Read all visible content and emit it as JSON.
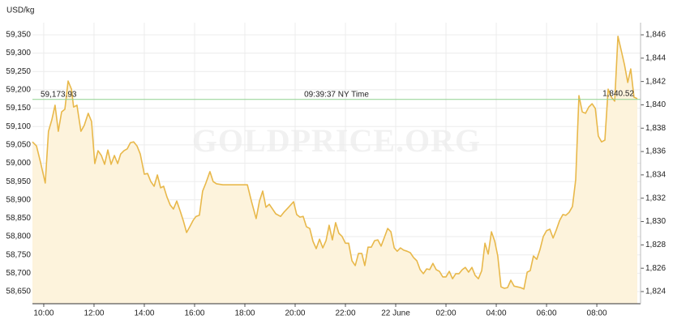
{
  "chart_data": {
    "type": "line",
    "y_label": "USD/kg",
    "watermark": "GOLDPRICE.ORG",
    "xlim": [
      9.55,
      33.74
    ],
    "xticks": [
      {
        "value": 10,
        "label": "10:00"
      },
      {
        "value": 12,
        "label": "12:00"
      },
      {
        "value": 14,
        "label": "14:00"
      },
      {
        "value": 16,
        "label": "16:00"
      },
      {
        "value": 18,
        "label": "18:00"
      },
      {
        "value": 20,
        "label": "20:00"
      },
      {
        "value": 22,
        "label": "22:00"
      },
      {
        "value": 24,
        "label": "22 June"
      },
      {
        "value": 26,
        "label": "02:00"
      },
      {
        "value": 28,
        "label": "04:00"
      },
      {
        "value": 30,
        "label": "06:00"
      },
      {
        "value": 32,
        "label": "08:00"
      }
    ],
    "ylim": [
      58617,
      59383
    ],
    "yticks": [
      {
        "value": 58650,
        "label": "58,650"
      },
      {
        "value": 58700,
        "label": "58,700"
      },
      {
        "value": 58750,
        "label": "58,750"
      },
      {
        "value": 58800,
        "label": "58,800"
      },
      {
        "value": 58850,
        "label": "58,850"
      },
      {
        "value": 58900,
        "label": "58,900"
      },
      {
        "value": 58950,
        "label": "58,950"
      },
      {
        "value": 59000,
        "label": "59,000"
      },
      {
        "value": 59050,
        "label": "59,050"
      },
      {
        "value": 59100,
        "label": "59,100"
      },
      {
        "value": 59150,
        "label": "59,150"
      },
      {
        "value": 59200,
        "label": "59,200"
      },
      {
        "value": 59250,
        "label": "59,250"
      },
      {
        "value": 59300,
        "label": "59,300"
      },
      {
        "value": 59350,
        "label": "59,350"
      }
    ],
    "y2lim": [
      1822.96,
      1847.04
    ],
    "y2ticks": [
      {
        "value": 1824,
        "label": "1,824"
      },
      {
        "value": 1826,
        "label": "1,826"
      },
      {
        "value": 1828,
        "label": "1,828"
      },
      {
        "value": 1830,
        "label": "1,830"
      },
      {
        "value": 1832,
        "label": "1,832"
      },
      {
        "value": 1834,
        "label": "1,834"
      },
      {
        "value": 1836,
        "label": "1,836"
      },
      {
        "value": 1838,
        "label": "1,838"
      },
      {
        "value": 1840,
        "label": "1,840"
      },
      {
        "value": 1842,
        "label": "1,842"
      },
      {
        "value": 1844,
        "label": "1,844"
      },
      {
        "value": 1846,
        "label": "1,846"
      }
    ],
    "grid": true,
    "reference": {
      "value": 59173.93,
      "label": "59,173.93",
      "time": "09:39:37 NY Time",
      "y2_value": 1840.52,
      "y2_label": "1,840.52",
      "color": "#8fd18f",
      "text_color": "#55a83a"
    },
    "x": [
      9.55,
      9.71,
      9.87,
      10.06,
      10.19,
      10.32,
      10.45,
      10.58,
      10.71,
      10.84,
      10.97,
      11.1,
      11.19,
      11.32,
      11.48,
      11.61,
      11.77,
      11.9,
      12.03,
      12.16,
      12.29,
      12.42,
      12.55,
      12.68,
      12.81,
      12.94,
      13.06,
      13.19,
      13.32,
      13.45,
      13.58,
      13.71,
      13.84,
      14.0,
      14.13,
      14.26,
      14.39,
      14.52,
      14.65,
      14.77,
      14.9,
      15.03,
      15.16,
      15.29,
      15.42,
      15.55,
      15.68,
      15.81,
      15.94,
      16.06,
      16.19,
      16.32,
      16.45,
      16.61,
      16.74,
      16.87,
      17.13,
      17.61,
      18.1,
      18.26,
      18.45,
      18.58,
      18.71,
      18.84,
      18.97,
      19.1,
      19.23,
      19.42,
      19.55,
      19.74,
      19.94,
      20.06,
      20.19,
      20.32,
      20.45,
      20.58,
      20.71,
      20.84,
      20.97,
      21.1,
      21.23,
      21.35,
      21.48,
      21.61,
      21.74,
      21.87,
      22.0,
      22.13,
      22.26,
      22.39,
      22.52,
      22.65,
      22.77,
      22.9,
      23.03,
      23.16,
      23.29,
      23.42,
      23.55,
      23.68,
      23.81,
      23.94,
      24.06,
      24.19,
      24.32,
      24.45,
      24.58,
      24.71,
      24.84,
      24.97,
      25.1,
      25.23,
      25.35,
      25.48,
      25.61,
      25.74,
      25.87,
      26.0,
      26.13,
      26.26,
      26.39,
      26.52,
      26.65,
      26.77,
      26.9,
      27.03,
      27.16,
      27.29,
      27.42,
      27.55,
      27.68,
      27.81,
      27.94,
      28.06,
      28.19,
      28.32,
      28.45,
      28.58,
      28.71,
      28.84,
      28.97,
      29.1,
      29.23,
      29.35,
      29.48,
      29.61,
      29.74,
      29.87,
      30.0,
      30.13,
      30.26,
      30.39,
      30.52,
      30.65,
      30.77,
      30.9,
      31.03,
      31.16,
      31.29,
      31.42,
      31.55,
      31.68,
      31.81,
      31.94,
      32.06,
      32.19,
      32.32,
      32.45,
      32.58,
      32.71,
      32.84,
      32.97,
      33.1,
      33.23,
      33.35,
      33.48,
      33.61
    ],
    "series": [
      {
        "color": "#e8b84a",
        "fill": "#fdf3dc",
        "values": [
          59058,
          59047,
          59003,
          58946,
          59087,
          59118,
          59158,
          59087,
          59140,
          59147,
          59224,
          59202,
          59153,
          59158,
          59087,
          59103,
          59136,
          59114,
          58999,
          59034,
          59021,
          58997,
          59036,
          58997,
          59021,
          58999,
          59025,
          59034,
          59039,
          59056,
          59058,
          59047,
          59025,
          58970,
          58972,
          58950,
          58937,
          58968,
          58933,
          58937,
          58908,
          58886,
          58875,
          58897,
          58871,
          58844,
          58811,
          58827,
          58844,
          58855,
          58858,
          58924,
          58946,
          58977,
          58950,
          58944,
          58941,
          58941,
          58941,
          58897,
          58849,
          58897,
          58924,
          58880,
          58888,
          58875,
          58862,
          58855,
          58866,
          58880,
          58895,
          58860,
          58853,
          58855,
          58827,
          58822,
          58787,
          58767,
          58793,
          58769,
          58789,
          58831,
          58791,
          58838,
          58809,
          58800,
          58782,
          58782,
          58734,
          58721,
          58754,
          58754,
          58721,
          58771,
          58771,
          58789,
          58791,
          58774,
          58798,
          58822,
          58813,
          58769,
          58760,
          58769,
          58763,
          58760,
          58756,
          58743,
          58734,
          58710,
          58699,
          58712,
          58710,
          58727,
          58710,
          58705,
          58690,
          58690,
          58705,
          58685,
          58699,
          58699,
          58710,
          58716,
          58703,
          58716,
          58694,
          58685,
          58707,
          58782,
          58752,
          58813,
          58787,
          58747,
          58663,
          58659,
          58661,
          58681,
          58665,
          58663,
          58661,
          58657,
          58703,
          58707,
          58747,
          58738,
          58765,
          58800,
          58816,
          58820,
          58796,
          58818,
          58844,
          58860,
          58858,
          58866,
          58882,
          58955,
          59184,
          59140,
          59136,
          59153,
          59162,
          59149,
          59074,
          59058,
          59063,
          59202,
          59180,
          59169,
          59346,
          59308,
          59268,
          59220,
          59257,
          59180,
          59176
        ]
      }
    ]
  }
}
